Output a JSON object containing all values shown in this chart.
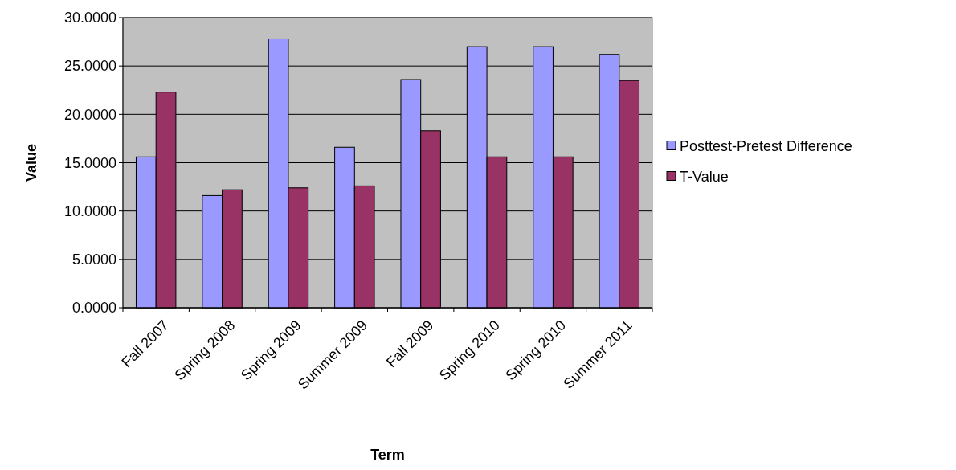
{
  "chart_data": {
    "type": "bar",
    "xlabel": "Term",
    "ylabel": "Value",
    "categories": [
      "Fall 2007",
      "Spring 2008",
      "Spring 2009",
      "Summer 2009",
      "Fall 2009",
      "Spring 2010",
      "Spring 2010",
      "Summer 2011"
    ],
    "series": [
      {
        "name": "Posttest-Pretest Difference",
        "color": "#9999ff",
        "values": [
          15.6,
          11.6,
          27.8,
          16.6,
          23.6,
          27.0,
          27.0,
          26.2
        ]
      },
      {
        "name": "T-Value",
        "color": "#993366",
        "values": [
          22.3,
          12.2,
          12.4,
          12.6,
          18.3,
          15.6,
          15.6,
          23.5
        ]
      }
    ],
    "ylim": [
      0,
      30
    ],
    "yticks": [
      {
        "value": 0,
        "label": "0.0000"
      },
      {
        "value": 5,
        "label": "5.0000"
      },
      {
        "value": 10,
        "label": "10.0000"
      },
      {
        "value": 15,
        "label": "15.0000"
      },
      {
        "value": 20,
        "label": "20.0000"
      },
      {
        "value": 25,
        "label": "25.0000"
      },
      {
        "value": 30,
        "label": "30.0000"
      }
    ],
    "grid": "y",
    "legend": "right"
  }
}
